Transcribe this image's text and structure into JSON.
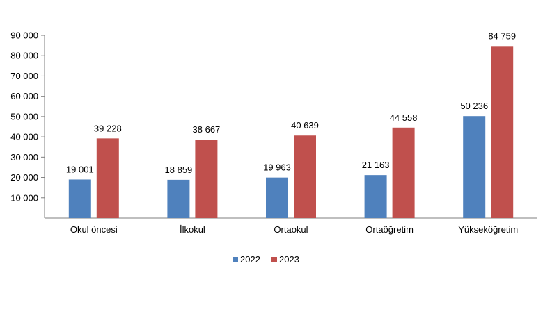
{
  "chart_data": {
    "type": "bar",
    "categories": [
      "Okul öncesi",
      "İlkokul",
      "Ortaokul",
      "Ortaöğretim",
      "Yükseköğretim"
    ],
    "series": [
      {
        "name": "2022",
        "color": "#4f81bd",
        "values": [
          19001,
          18859,
          19963,
          21163,
          50236
        ],
        "labels": [
          "19 001",
          "18 859",
          "19 963",
          "21 163",
          "50 236"
        ]
      },
      {
        "name": "2023",
        "color": "#c0504d",
        "values": [
          39228,
          38667,
          40639,
          44558,
          84759
        ],
        "labels": [
          "39 228",
          "38 667",
          "40 639",
          "44 558",
          "84 759"
        ]
      }
    ],
    "ylim": [
      0,
      90000
    ],
    "yticks": [
      10000,
      20000,
      30000,
      40000,
      50000,
      60000,
      70000,
      80000,
      90000
    ],
    "ytick_labels": [
      "10 000",
      "20 000",
      "30 000",
      "40 000",
      "50 000",
      "60 000",
      "70 000",
      "80 000",
      "90 000"
    ],
    "grid": false,
    "legend_position": "bottom",
    "title": "",
    "xlabel": "",
    "ylabel": ""
  }
}
